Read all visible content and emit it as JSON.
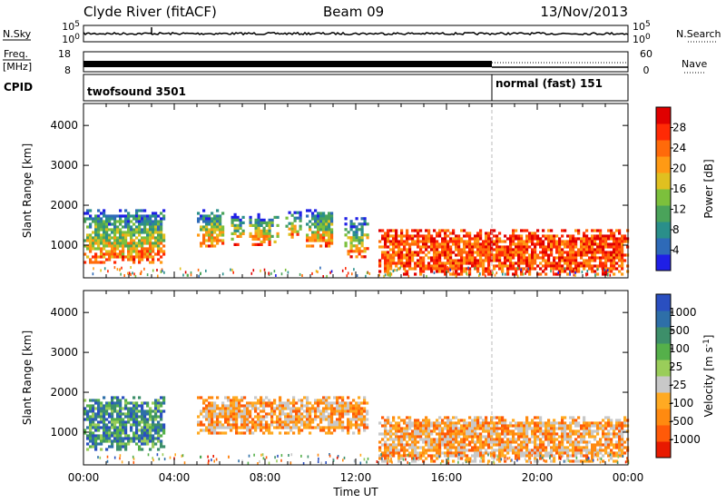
{
  "header": {
    "station": "Clyde River (fitACF)",
    "beam": "Beam 09",
    "date": "13/Nov/2013"
  },
  "strip": {
    "nsky_label": "N.Sky",
    "nsearch_label": "N.Search",
    "nsky_ticks": [
      "10^5",
      "10^0"
    ],
    "nsearch_ticks": [
      "10^5",
      "10^0"
    ],
    "freq_label": "Freq.",
    "freq_unit": "[MHz]",
    "freq_ticks": [
      "18",
      "8"
    ],
    "nave_label": "Nave",
    "nave_ticks": [
      "60",
      "0"
    ],
    "cpid_label": "CPID",
    "cpid_modes": [
      "twofsound 3501",
      "normal (fast) 151"
    ],
    "mode_switch_time": "18:00"
  },
  "chart_data": [
    {
      "type": "heatmap",
      "panel": "power",
      "x_axis": "Time UT",
      "ylabel": "Slant Range [km]",
      "xlim": [
        "00:00",
        "24:00"
      ],
      "ylim": [
        180,
        4550
      ],
      "xticks": [
        "00:00",
        "04:00",
        "08:00",
        "12:00",
        "16:00",
        "20:00",
        "00:00"
      ],
      "yticks": [
        1000,
        2000,
        3000,
        4000
      ],
      "colorbar": {
        "label": "Power [dB]",
        "ticks": [
          4,
          8,
          12,
          16,
          20,
          24,
          28
        ],
        "colors": [
          "#1f1fe6",
          "#2e6ab8",
          "#2a8f8a",
          "#4aa35a",
          "#7cc03c",
          "#e0c020",
          "#ff9a14",
          "#ff6a0a",
          "#ff2a05",
          "#e00000"
        ]
      },
      "echo_regions_hours_km": [
        {
          "t0": 0.0,
          "t1": 3.6,
          "r0": 600,
          "r1": 1900,
          "level": "mid"
        },
        {
          "t0": 5.0,
          "t1": 6.2,
          "r0": 1000,
          "r1": 1900,
          "level": "mid"
        },
        {
          "t0": 6.5,
          "t1": 7.1,
          "r0": 1000,
          "r1": 1800,
          "level": "mid"
        },
        {
          "t0": 7.3,
          "t1": 8.6,
          "r0": 1000,
          "r1": 1800,
          "level": "mid"
        },
        {
          "t0": 8.9,
          "t1": 9.6,
          "r0": 1200,
          "r1": 1850,
          "level": "mid"
        },
        {
          "t0": 9.8,
          "t1": 11.0,
          "r0": 1000,
          "r1": 1900,
          "level": "mid"
        },
        {
          "t0": 11.5,
          "t1": 12.5,
          "r0": 700,
          "r1": 1700,
          "level": "mid"
        },
        {
          "t0": 13.0,
          "t1": 24.0,
          "r0": 300,
          "r1": 1400,
          "level": "high"
        }
      ]
    },
    {
      "type": "heatmap",
      "panel": "velocity",
      "x_axis": "Time UT",
      "ylabel": "Slant Range [km]",
      "xlim": [
        "00:00",
        "24:00"
      ],
      "ylim": [
        180,
        4550
      ],
      "xticks": [
        "00:00",
        "04:00",
        "08:00",
        "12:00",
        "16:00",
        "20:00",
        "00:00"
      ],
      "yticks": [
        1000,
        2000,
        3000,
        4000
      ],
      "colorbar": {
        "label": "Velocity [m s^-1]",
        "ticks": [
          1000,
          500,
          100,
          25,
          -25,
          -100,
          -500,
          -1000
        ],
        "colors": [
          "#2a4fc0",
          "#2e6fa8",
          "#3d8f6a",
          "#55b04a",
          "#9acd5a",
          "#c8c8c8",
          "#ffaa22",
          "#ff8a10",
          "#ff5a08",
          "#e81a00"
        ]
      },
      "echo_regions_hours_km": [
        {
          "t0": 0.0,
          "t1": 3.6,
          "r0": 600,
          "r1": 1900,
          "level": "positive"
        },
        {
          "t0": 5.0,
          "t1": 12.5,
          "r0": 1000,
          "r1": 1900,
          "level": "negative"
        },
        {
          "t0": 13.0,
          "t1": 24.0,
          "r0": 300,
          "r1": 1400,
          "level": "negative"
        }
      ]
    }
  ],
  "xaxis_title": "Time UT"
}
